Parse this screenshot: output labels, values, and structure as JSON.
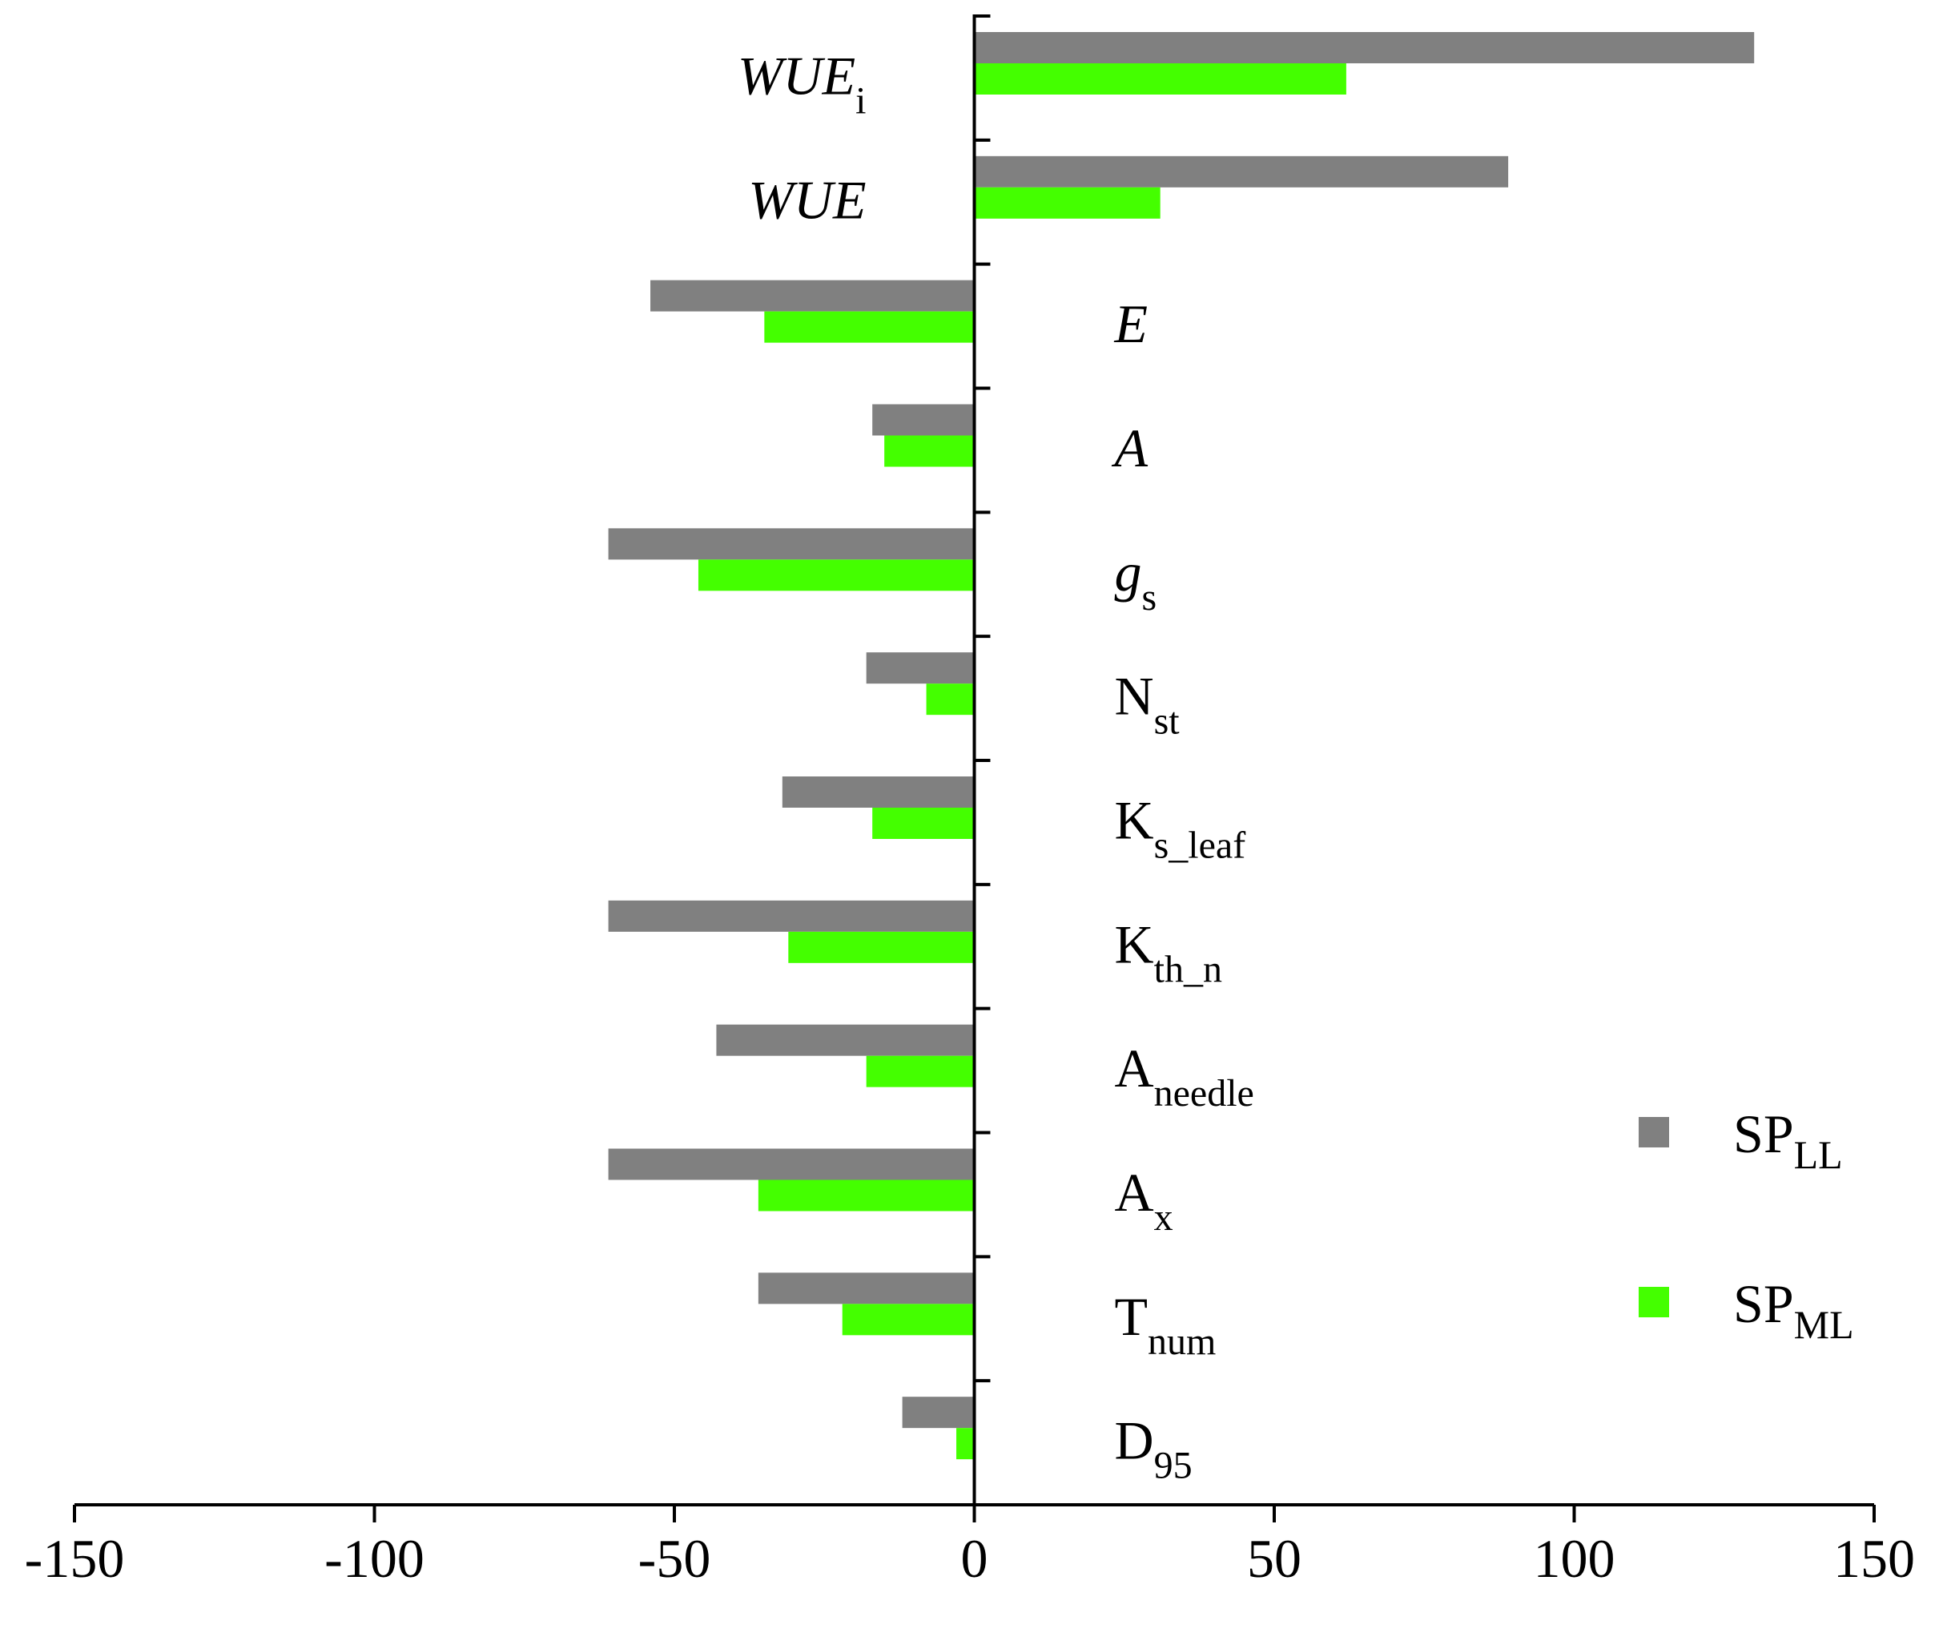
{
  "chart_data": {
    "type": "bar",
    "orientation": "horizontal",
    "title": "",
    "xlabel": "",
    "ylabel": "",
    "xlim": [
      -150,
      150
    ],
    "xticks": [
      -150,
      -100,
      -50,
      0,
      50,
      100,
      150
    ],
    "xtick_labels": [
      "-150",
      "-100",
      "-50",
      "0",
      "50",
      "100",
      "150"
    ],
    "grid": false,
    "legend_position": "bottom-right",
    "categories": [
      {
        "main": "WUE",
        "sub": "i",
        "italic": true
      },
      {
        "main": "WUE",
        "sub": "",
        "italic": true
      },
      {
        "main": "E",
        "sub": "",
        "italic": true
      },
      {
        "main": "A",
        "sub": "",
        "italic": true
      },
      {
        "main": "g",
        "sub": "s",
        "italic": true
      },
      {
        "main": "N",
        "sub": "st",
        "italic": false
      },
      {
        "main": "K",
        "sub": "s_leaf",
        "italic": false
      },
      {
        "main": "K",
        "sub": "th_n",
        "italic": false
      },
      {
        "main": "A",
        "sub": "needle",
        "italic": false
      },
      {
        "main": "A",
        "sub": "x",
        "italic": false
      },
      {
        "main": "T",
        "sub": "num",
        "italic": false
      },
      {
        "main": "D",
        "sub": "95",
        "italic": false
      }
    ],
    "series": [
      {
        "name_main": "SP",
        "name_sub": "LL",
        "color": "#808080",
        "values": [
          130,
          89,
          -54,
          -17,
          -61,
          -18,
          -32,
          -61,
          -43,
          -61,
          -36,
          -12
        ]
      },
      {
        "name_main": "SP",
        "name_sub": "ML",
        "color": "#44ff00",
        "values": [
          62,
          31,
          -35,
          -15,
          -46,
          -8,
          -17,
          -31,
          -18,
          -36,
          -22,
          -3
        ]
      }
    ]
  }
}
